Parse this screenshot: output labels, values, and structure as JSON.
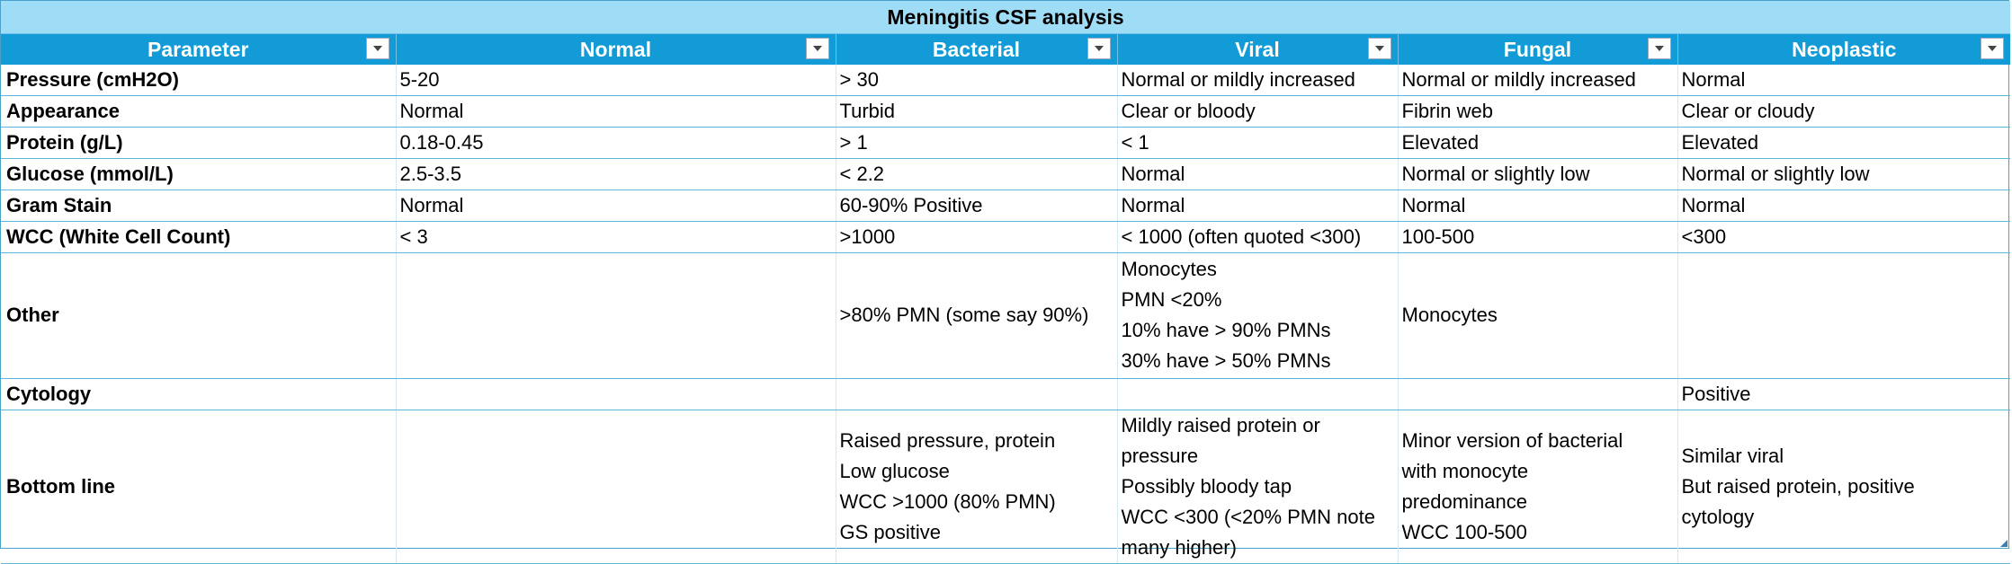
{
  "table": {
    "title": "Meningitis CSF analysis",
    "headers": [
      "Parameter",
      "Normal",
      "Bacterial",
      "Viral",
      "Fungal",
      "Neoplastic"
    ],
    "rows": [
      {
        "cells": [
          [
            "Pressure (cmH2O)"
          ],
          [
            " 5-20"
          ],
          [
            "> 30"
          ],
          [
            "Normal or mildly increased"
          ],
          [
            "Normal or mildly increased"
          ],
          [
            "Normal"
          ]
        ]
      },
      {
        "cells": [
          [
            "Appearance"
          ],
          [
            "Normal"
          ],
          [
            "Turbid"
          ],
          [
            "Clear or bloody"
          ],
          [
            "Fibrin web"
          ],
          [
            "Clear or cloudy"
          ]
        ]
      },
      {
        "cells": [
          [
            "Protein (g/L)"
          ],
          [
            "0.18-0.45"
          ],
          [
            "> 1"
          ],
          [
            "< 1"
          ],
          [
            "Elevated"
          ],
          [
            "Elevated"
          ]
        ]
      },
      {
        "cells": [
          [
            "Glucose (mmol/L)"
          ],
          [
            "2.5-3.5"
          ],
          [
            "< 2.2"
          ],
          [
            "Normal"
          ],
          [
            "Normal or slightly low"
          ],
          [
            "Normal or slightly low"
          ]
        ]
      },
      {
        "cells": [
          [
            "Gram Stain"
          ],
          [
            "Normal"
          ],
          [
            "60-90% Positive"
          ],
          [
            "Normal"
          ],
          [
            "Normal"
          ],
          [
            "Normal"
          ]
        ]
      },
      {
        "cells": [
          [
            "WCC (White Cell Count)"
          ],
          [
            "< 3"
          ],
          [
            ">1000"
          ],
          [
            "< 1000 (often quoted <300)"
          ],
          [
            "100-500"
          ],
          [
            "<300"
          ]
        ]
      },
      {
        "cells": [
          [
            "Other"
          ],
          [
            ""
          ],
          [
            ">80% PMN (some say 90%)"
          ],
          [
            "Monocytes",
            "PMN <20%",
            "10% have > 90% PMNs",
            "30% have > 50% PMNs"
          ],
          [
            "Monocytes"
          ],
          [
            ""
          ]
        ]
      },
      {
        "cells": [
          [
            "Cytology"
          ],
          [
            ""
          ],
          [
            ""
          ],
          [
            ""
          ],
          [
            ""
          ],
          [
            "Positive"
          ]
        ]
      },
      {
        "cells": [
          [
            "Bottom line"
          ],
          [
            ""
          ],
          [
            "Raised pressure, protein",
            "Low glucose",
            "WCC >1000 (80% PMN)",
            "GS positive"
          ],
          [
            "Mildly raised protein or",
            "pressure",
            "Possibly bloody tap",
            "WCC <300 (<20% PMN note",
            "many higher)"
          ],
          [
            "Minor version of bacterial",
            "with monocyte",
            "predominance",
            "WCC 100-500"
          ],
          [
            "Similar viral",
            "But raised protein, positive",
            "cytology"
          ]
        ]
      }
    ]
  },
  "colors": {
    "title_bg": "#9fdcf6",
    "header_bg": "#129bd6",
    "header_text": "#ffffff",
    "border": "#5fb6dc"
  },
  "icons": {
    "filter": "filter-dropdown-icon",
    "resize": "table-resize-handle-icon"
  }
}
